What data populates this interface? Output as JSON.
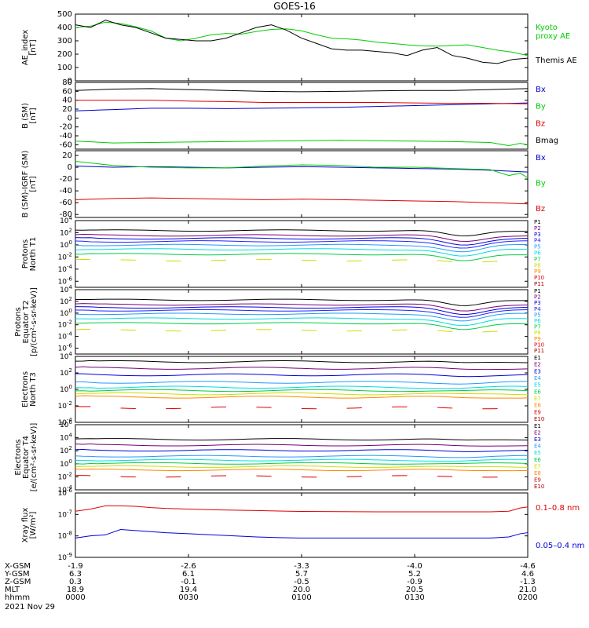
{
  "title": "GOES-16",
  "chart_data": [
    {
      "id": "ae",
      "type": "line",
      "ylabel": [
        "AE_index",
        "[nT]"
      ],
      "ylim": [
        0,
        500
      ],
      "yticks": [
        {
          "v": 0,
          "t": "0"
        },
        {
          "v": 100,
          "t": "100"
        },
        {
          "v": 200,
          "t": "200"
        },
        {
          "v": 300,
          "t": "300"
        },
        {
          "v": 400,
          "t": "400"
        },
        {
          "v": 500,
          "t": "500"
        }
      ],
      "series": [
        {
          "name": "Kyoto\nproxy AE",
          "color": "#00cc00",
          "t": [
            0,
            4,
            8,
            12,
            16,
            20,
            24,
            28,
            32,
            36,
            40,
            44,
            48,
            52,
            56,
            60,
            64,
            68,
            72,
            76,
            80,
            84,
            88,
            92,
            96,
            100,
            104,
            108,
            112,
            116,
            120
          ],
          "y": [
            400,
            410,
            440,
            430,
            405,
            375,
            320,
            300,
            320,
            345,
            355,
            350,
            370,
            385,
            390,
            375,
            345,
            320,
            315,
            305,
            290,
            280,
            270,
            262,
            260,
            265,
            270,
            250,
            230,
            215,
            190
          ]
        },
        {
          "name": "Themis AE",
          "color": "#000000",
          "t": [
            0,
            4,
            8,
            12,
            16,
            20,
            24,
            28,
            32,
            36,
            40,
            44,
            48,
            52,
            56,
            60,
            64,
            68,
            72,
            76,
            80,
            84,
            88,
            92,
            96,
            100,
            104,
            108,
            112,
            116,
            120
          ],
          "y": [
            420,
            400,
            455,
            420,
            400,
            360,
            320,
            310,
            300,
            300,
            320,
            360,
            400,
            420,
            380,
            320,
            280,
            240,
            230,
            230,
            220,
            210,
            190,
            230,
            250,
            190,
            170,
            140,
            130,
            160,
            170
          ]
        }
      ]
    },
    {
      "id": "bsm",
      "type": "line",
      "ylabel": [
        "B (SM)",
        "[nT]"
      ],
      "ylim": [
        -70,
        80
      ],
      "yticks": [
        {
          "v": -60,
          "t": "-60"
        },
        {
          "v": -40,
          "t": "-40"
        },
        {
          "v": -20,
          "t": "-20"
        },
        {
          "v": 0,
          "t": "0"
        },
        {
          "v": 20,
          "t": "20"
        },
        {
          "v": 40,
          "t": "40"
        },
        {
          "v": 60,
          "t": "60"
        },
        {
          "v": 80,
          "t": "80"
        }
      ],
      "series": [
        {
          "name": "Bx",
          "color": "#0000cc",
          "t": [
            0,
            10,
            20,
            30,
            40,
            50,
            60,
            70,
            80,
            90,
            100,
            110,
            120
          ],
          "y": [
            16,
            19,
            22,
            22,
            21,
            22,
            23,
            24,
            26,
            28,
            30,
            32,
            34
          ]
        },
        {
          "name": "By",
          "color": "#00cc00",
          "t": [
            0,
            10,
            20,
            30,
            40,
            50,
            60,
            70,
            80,
            90,
            100,
            110,
            115,
            118,
            120
          ],
          "y": [
            -52,
            -56,
            -55,
            -54,
            -53,
            -52,
            -51,
            -50,
            -51,
            -52,
            -53,
            -55,
            -62,
            -57,
            -60
          ]
        },
        {
          "name": "Bz",
          "color": "#dd0000",
          "t": [
            0,
            10,
            20,
            30,
            40,
            50,
            60,
            70,
            80,
            90,
            100,
            110,
            120
          ],
          "y": [
            40,
            40,
            40,
            38,
            37,
            35,
            35,
            35,
            35,
            34,
            33,
            33,
            32
          ]
        },
        {
          "name": "Bmag",
          "color": "#000000",
          "t": [
            0,
            10,
            20,
            30,
            40,
            50,
            60,
            70,
            80,
            90,
            100,
            110,
            120
          ],
          "y": [
            62,
            65,
            66,
            64,
            62,
            60,
            59,
            60,
            61,
            62,
            62,
            64,
            66
          ]
        }
      ]
    },
    {
      "id": "bigrf",
      "type": "line",
      "ylabel": [
        "B (SM)-IGRF (SM)",
        "[nT]"
      ],
      "ylim": [
        -85,
        28
      ],
      "yticks": [
        {
          "v": -80,
          "t": "-80"
        },
        {
          "v": -60,
          "t": "-60"
        },
        {
          "v": -40,
          "t": "-40"
        },
        {
          "v": -20,
          "t": "-20"
        },
        {
          "v": 0,
          "t": "0"
        },
        {
          "v": 20,
          "t": "20"
        }
      ],
      "series": [
        {
          "name": "Bx",
          "color": "#0000cc",
          "t": [
            0,
            10,
            20,
            30,
            40,
            50,
            60,
            70,
            80,
            90,
            100,
            110,
            120
          ],
          "y": [
            2,
            0,
            1,
            0,
            -1,
            0,
            1,
            0,
            -1,
            -2,
            -3,
            -5,
            -8
          ]
        },
        {
          "name": "By",
          "color": "#00cc00",
          "t": [
            0,
            10,
            20,
            30,
            40,
            50,
            60,
            70,
            80,
            90,
            100,
            110,
            115,
            118,
            120
          ],
          "y": [
            10,
            3,
            0,
            -1,
            -1,
            2,
            4,
            3,
            0,
            0,
            -2,
            -4,
            -14,
            -10,
            -18
          ]
        },
        {
          "name": "Bz",
          "color": "#dd0000",
          "t": [
            0,
            10,
            20,
            30,
            40,
            50,
            60,
            70,
            80,
            90,
            100,
            110,
            120
          ],
          "y": [
            -55,
            -53,
            -52,
            -53,
            -54,
            -55,
            -54,
            -55,
            -56,
            -57,
            -58,
            -60,
            -62
          ]
        }
      ]
    },
    {
      "id": "pn",
      "type": "line",
      "log": true,
      "ylabel": [
        "Protons",
        "North T1"
      ],
      "ylim_exp": [
        -7,
        4
      ],
      "yticks_exp": [
        -6,
        -4,
        -2,
        0,
        2,
        4
      ],
      "series": [
        {
          "name": "P1",
          "color": "#000000",
          "base": 2.4,
          "dip": 1.0
        },
        {
          "name": "P2",
          "color": "#770077",
          "base": 1.6,
          "dip": 1.0
        },
        {
          "name": "P3",
          "color": "#0000dd",
          "base": 1.1,
          "dip": 1.0
        },
        {
          "name": "P4",
          "color": "#2222ff",
          "base": 0.6,
          "dip": 1.0
        },
        {
          "name": "P5",
          "color": "#2299ff",
          "base": 0.0,
          "dip": 1.1
        },
        {
          "name": "P6",
          "color": "#00dddd",
          "base": -0.7,
          "dip": 1.2
        },
        {
          "name": "P7",
          "color": "#00cc44",
          "base": -1.5,
          "dip": 1.2
        },
        {
          "name": "P8",
          "color": "#ccdd00",
          "base": -2.5,
          "dip": 0.4,
          "seg": true
        },
        {
          "name": "P9",
          "color": "#ff8800",
          "base": -99,
          "dip": 0
        },
        {
          "name": "P10",
          "color": "#dd0000",
          "base": -99,
          "dip": 0
        },
        {
          "name": "P11",
          "color": "#aa0000",
          "base": -99,
          "dip": 0
        }
      ]
    },
    {
      "id": "pe",
      "type": "line",
      "log": true,
      "ylabel": [
        "Protons",
        "Equator T2",
        "[p/(cm²-s-sr-keV)]"
      ],
      "ylim_exp": [
        -7,
        4
      ],
      "yticks_exp": [
        -6,
        -4,
        -2,
        0,
        2,
        4
      ],
      "series": [
        {
          "name": "P1",
          "color": "#000000",
          "base": 2.3,
          "dip": 1.1
        },
        {
          "name": "P2",
          "color": "#770077",
          "base": 1.5,
          "dip": 1.1
        },
        {
          "name": "P3",
          "color": "#0000dd",
          "base": 1.0,
          "dip": 1.1
        },
        {
          "name": "P4",
          "color": "#2222ff",
          "base": 0.5,
          "dip": 1.1
        },
        {
          "name": "P5",
          "color": "#2299ff",
          "base": -0.1,
          "dip": 1.2
        },
        {
          "name": "P6",
          "color": "#00dddd",
          "base": -0.9,
          "dip": 1.3
        },
        {
          "name": "P7",
          "color": "#00cc44",
          "base": -1.7,
          "dip": 1.2
        },
        {
          "name": "P8",
          "color": "#ccdd00",
          "base": -2.9,
          "dip": 0.4,
          "seg": true
        },
        {
          "name": "P9",
          "color": "#ff8800",
          "base": -99,
          "dip": 0
        },
        {
          "name": "P10",
          "color": "#dd0000",
          "base": -99,
          "dip": 0
        },
        {
          "name": "P11",
          "color": "#aa0000",
          "base": -99,
          "dip": 0
        }
      ]
    },
    {
      "id": "en",
      "type": "line",
      "log": true,
      "ylabel": [
        "Electrons",
        "North T3"
      ],
      "ylim_exp": [
        -4,
        4
      ],
      "yticks_exp": [
        -4,
        -2,
        0,
        2,
        4
      ],
      "series": [
        {
          "name": "E1",
          "color": "#000000",
          "base": 3.4,
          "dip": 0.2
        },
        {
          "name": "E2",
          "color": "#770077",
          "base": 2.6,
          "dip": 0.1
        },
        {
          "name": "E3",
          "color": "#0000dd",
          "base": 1.8,
          "dip": 0.1
        },
        {
          "name": "E4",
          "color": "#2299ff",
          "base": 0.9,
          "dip": 0.1
        },
        {
          "name": "E5",
          "color": "#00dddd",
          "base": 0.3,
          "dip": 0.1
        },
        {
          "name": "E6",
          "color": "#00cc44",
          "base": -0.1,
          "dip": 0.1
        },
        {
          "name": "E7",
          "color": "#ccdd00",
          "base": -0.5,
          "dip": 0.1
        },
        {
          "name": "E8",
          "color": "#ff8800",
          "base": -0.9,
          "dip": 0.1
        },
        {
          "name": "E9",
          "color": "#dd0000",
          "base": -2.2,
          "dip": 0,
          "seg": true
        },
        {
          "name": "E10",
          "color": "#aa0000",
          "base": -99,
          "dip": 0
        }
      ]
    },
    {
      "id": "ee",
      "type": "line",
      "log": true,
      "ylabel": [
        "Electrons",
        "Equator T4",
        "[e/(cm²-s-sr-keV)]"
      ],
      "ylim_exp": [
        -4,
        6
      ],
      "yticks_exp": [
        -4,
        -2,
        0,
        2,
        4,
        6
      ],
      "series": [
        {
          "name": "E1",
          "color": "#000000",
          "base": 3.8,
          "dip": 0.2
        },
        {
          "name": "E2",
          "color": "#770077",
          "base": 2.9,
          "dip": 0.1
        },
        {
          "name": "E3",
          "color": "#0000dd",
          "base": 2.1,
          "dip": 0.1
        },
        {
          "name": "E4",
          "color": "#2299ff",
          "base": 1.2,
          "dip": 0.1
        },
        {
          "name": "E5",
          "color": "#00dddd",
          "base": 0.6,
          "dip": 0.1
        },
        {
          "name": "E6",
          "color": "#00cc44",
          "base": 0.1,
          "dip": 0.1
        },
        {
          "name": "E7",
          "color": "#ccdd00",
          "base": -0.4,
          "dip": 0.1
        },
        {
          "name": "E8",
          "color": "#ff8800",
          "base": -0.9,
          "dip": 0.1
        },
        {
          "name": "E9",
          "color": "#dd0000",
          "base": -1.9,
          "dip": 0,
          "seg": true
        },
        {
          "name": "E10",
          "color": "#aa0000",
          "base": -99,
          "dip": 0
        }
      ]
    },
    {
      "id": "xray",
      "type": "line",
      "log": true,
      "ylabel": [
        "Xray  flux",
        "[W/m²]"
      ],
      "ylim_exp": [
        -9,
        -6
      ],
      "yticks_exp": [
        -9,
        -8,
        -7,
        -6
      ],
      "series": [
        {
          "name": "0.1–0.8 nm",
          "color": "#dd0000",
          "t": [
            0,
            4,
            8,
            12,
            16,
            20,
            24,
            30,
            36,
            42,
            48,
            54,
            60,
            70,
            80,
            90,
            100,
            110,
            115,
            118,
            120
          ],
          "y": [
            -6.85,
            -6.75,
            -6.6,
            -6.6,
            -6.62,
            -6.68,
            -6.72,
            -6.75,
            -6.78,
            -6.8,
            -6.82,
            -6.84,
            -6.86,
            -6.87,
            -6.88,
            -6.88,
            -6.88,
            -6.88,
            -6.85,
            -6.7,
            -6.65
          ]
        },
        {
          "name": "0.05–0.4 nm",
          "color": "#0000dd",
          "t": [
            0,
            4,
            8,
            12,
            16,
            20,
            24,
            30,
            36,
            42,
            48,
            54,
            60,
            70,
            80,
            90,
            100,
            110,
            115,
            118,
            120
          ],
          "y": [
            -8.1,
            -8.0,
            -7.95,
            -7.7,
            -7.75,
            -7.8,
            -7.85,
            -7.9,
            -7.95,
            -8.0,
            -8.05,
            -8.08,
            -8.1,
            -8.1,
            -8.1,
            -8.1,
            -8.1,
            -8.1,
            -8.05,
            -7.9,
            -7.85
          ]
        }
      ]
    }
  ],
  "xaxis": {
    "positions_min": [
      0,
      30,
      60,
      90,
      120
    ],
    "rows": [
      {
        "label": "X-GSM",
        "values": [
          "-1.9",
          "-2.6",
          "-3.3",
          "-4.0",
          "-4.6"
        ]
      },
      {
        "label": "Y-GSM",
        "values": [
          "6.3",
          "6.1",
          "5.7",
          "5.2",
          "4.6"
        ]
      },
      {
        "label": "Z-GSM",
        "values": [
          "0.3",
          "-0.1",
          "-0.5",
          "-0.9",
          "-1.3"
        ]
      },
      {
        "label": "MLT",
        "values": [
          "18.9",
          "19.4",
          "20.0",
          "20.5",
          "21.0"
        ]
      },
      {
        "label": "hhmm",
        "values": [
          "0000",
          "0030",
          "0100",
          "0130",
          "0200"
        ]
      }
    ],
    "date": "2021 Nov 29"
  }
}
